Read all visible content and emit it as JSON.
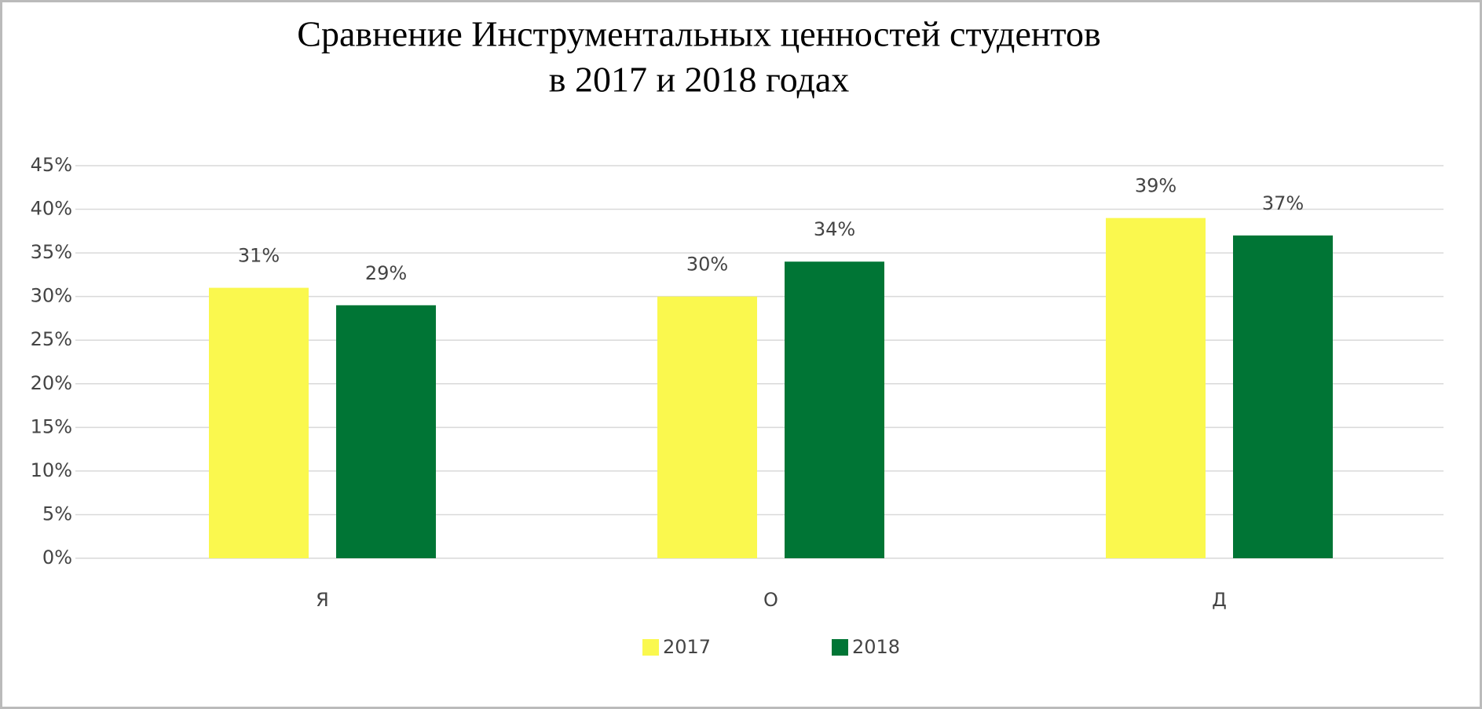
{
  "chart_data": {
    "type": "bar",
    "title": [
      "Сравнение Инструментальных ценностей студентов",
      "в 2017 и 2018 годах"
    ],
    "categories": [
      "Я",
      "О",
      "Д"
    ],
    "series": [
      {
        "name": "2017",
        "color": "#faf84e",
        "values": [
          31,
          30,
          39
        ],
        "value_labels": [
          "31%",
          "30%",
          "39%"
        ]
      },
      {
        "name": "2018",
        "color": "#007535",
        "values": [
          29,
          34,
          37
        ],
        "value_labels": [
          "29%",
          "34%",
          "37%"
        ]
      }
    ],
    "ylim": [
      0,
      45
    ],
    "yticks": [
      {
        "value": 0,
        "label": "0%"
      },
      {
        "value": 5,
        "label": "5%"
      },
      {
        "value": 10,
        "label": "10%"
      },
      {
        "value": 15,
        "label": "15%"
      },
      {
        "value": 20,
        "label": "20%"
      },
      {
        "value": 25,
        "label": "25%"
      },
      {
        "value": 30,
        "label": "30%"
      },
      {
        "value": 35,
        "label": "35%"
      },
      {
        "value": 40,
        "label": "40%"
      },
      {
        "value": 45,
        "label": "45%"
      }
    ],
    "grid": true,
    "legend": "bottom"
  }
}
